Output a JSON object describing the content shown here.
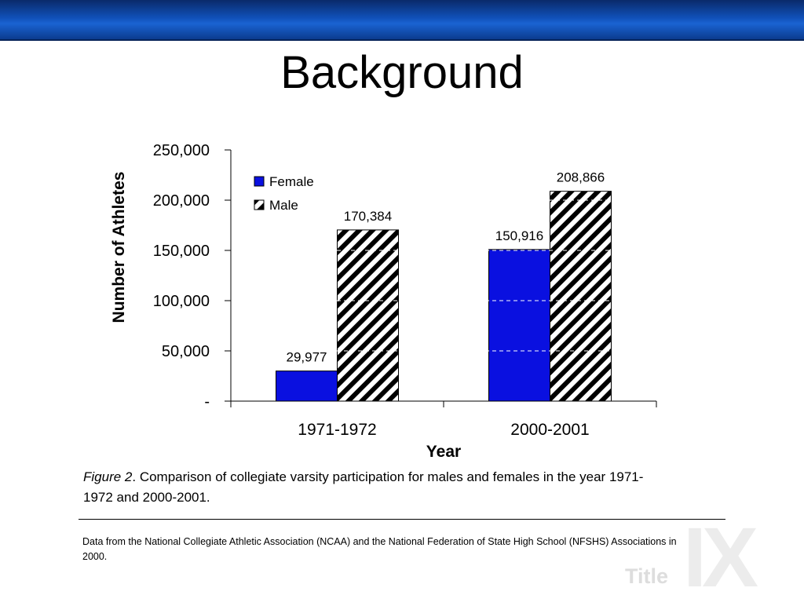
{
  "slide": {
    "title": "Background",
    "caption_label": "Figure 2",
    "caption_text": ". Comparison of collegiate varsity participation for males and females in the year 1971-1972 and 2000-2001.",
    "source_note": "Data from the National Collegiate Athletic Association (NCAA) and the National Federation of State High School (NFSHS) Associations in 2000.",
    "brand_small": "Title",
    "brand_big": "IX"
  },
  "colors": {
    "header_bar": "#1050b8",
    "female": "#0a10e0",
    "male_hatch": "#000000"
  },
  "chart_data": {
    "type": "bar",
    "title": "",
    "xlabel": "Year",
    "ylabel": "Number of Athletes",
    "categories": [
      "1971-1972",
      "2000-2001"
    ],
    "series": [
      {
        "name": "Female",
        "values": [
          29977,
          150916
        ],
        "labels": [
          "29,977",
          "150,916"
        ]
      },
      {
        "name": "Male",
        "values": [
          170384,
          208866
        ],
        "labels": [
          "170,384",
          "208,866"
        ]
      }
    ],
    "ylim": [
      0,
      250000
    ],
    "yticks": [
      0,
      50000,
      100000,
      150000,
      200000,
      250000
    ],
    "ytick_labels": [
      "-",
      "50,000",
      "100,000",
      "150,000",
      "200,000",
      "250,000"
    ],
    "grid": "dashed white gridlines visible over bars",
    "legend_position": "top-left"
  }
}
